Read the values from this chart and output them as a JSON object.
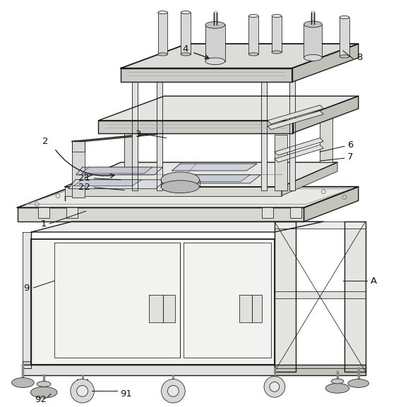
{
  "background_color": "#ffffff",
  "line_color": "#1a1a1a",
  "figure_width": 5.61,
  "figure_height": 5.77,
  "dpi": 100,
  "annotation_fontsize": 9.5,
  "lw_main": 1.0,
  "lw_thin": 0.55,
  "lw_thick": 1.3,
  "colors": {
    "light_face": "#f0f0ee",
    "mid_face": "#e0e0dc",
    "dark_face": "#d0d0ca",
    "darker_face": "#c4c4bc",
    "cabinet_front": "#f2f2f0",
    "cabinet_side": "#e4e4e0",
    "cabinet_top": "#ebebeb",
    "frame_col": "#d8d8d4",
    "plate_top": "#e8e8e4",
    "plate_front": "#d8d8d2",
    "gantry_top": "#dcdcd8",
    "gantry_front": "#ccccc6",
    "gantry_side": "#c0c0b8",
    "press_top": "#e4e4e0",
    "work_surface": "#e6e6e2",
    "rod_col": "#e8e8e8",
    "caster_col": "#c8c8c8",
    "foot_col": "#b8b8b4"
  }
}
